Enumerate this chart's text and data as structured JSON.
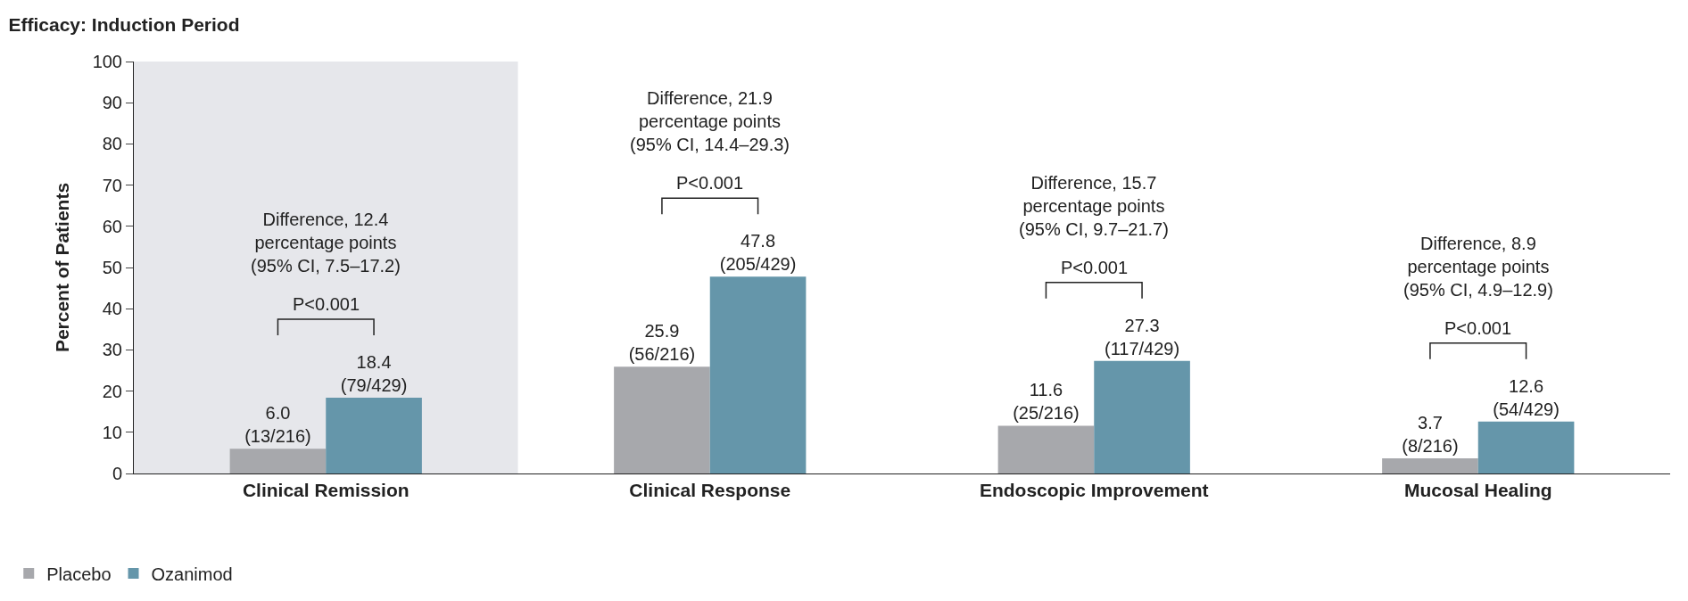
{
  "chart_data": {
    "type": "bar",
    "title": "Efficacy: Induction Period",
    "ylabel": "Percent of Patients",
    "categories": [
      "Clinical Remission",
      "Clinical Response",
      "Endoscopic Improvement",
      "Mucosal Healing"
    ],
    "series": [
      {
        "name": "Placebo",
        "color": "#a7a8ac",
        "values": [
          6.0,
          25.9,
          11.6,
          3.7
        ],
        "value_labels": [
          "6.0\n(13/216)",
          "25.9\n(56/216)",
          "11.6\n(25/216)",
          "3.7\n(8/216)"
        ]
      },
      {
        "name": "Ozanimod",
        "color": "#6596aa",
        "values": [
          18.4,
          47.8,
          27.3,
          12.6
        ],
        "value_labels": [
          "18.4\n(79/429)",
          "47.8\n(205/429)",
          "27.3\n(117/429)",
          "12.6\n(54/429)"
        ]
      }
    ],
    "ylim": [
      0,
      100
    ],
    "yticks": [
      0,
      10,
      20,
      30,
      40,
      50,
      60,
      70,
      80,
      90,
      100
    ],
    "grid": false,
    "legend": "bottom left",
    "bands": [
      {
        "axis": "x",
        "from": "Clinical Remission",
        "to": "Clinical Remission",
        "color": "#e6e7eb"
      }
    ],
    "annotations": [
      "Difference, 12.4\npercentage points\n(95% CI, 7.5–17.2)",
      "P<0.001",
      "Difference, 21.9\npercentage points\n(95% CI, 14.4–29.3)",
      "P<0.001",
      "Difference, 15.7\npercentage points\n(95% CI, 9.7–21.7)",
      "P<0.001",
      "Difference, 8.9\npercentage points\n(95% CI, 4.9–12.9)",
      "P<0.001"
    ]
  }
}
